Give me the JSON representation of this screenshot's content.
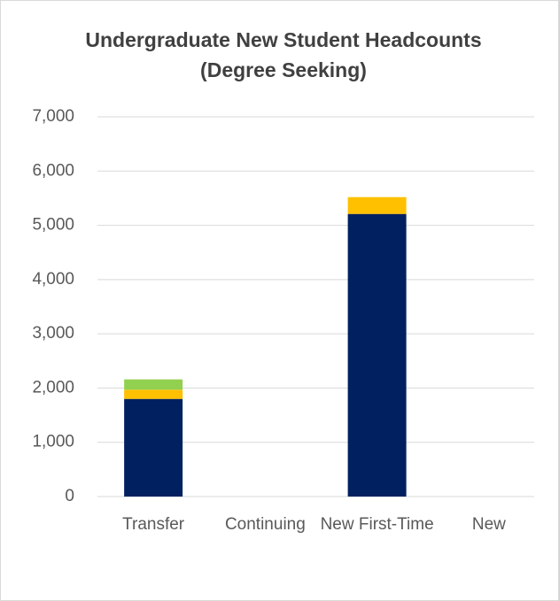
{
  "chart_data": {
    "type": "stacked_bar",
    "title": "Undergraduate New Student Headcounts (Degree Seeking)",
    "categories": [
      "Transfer",
      "Continuing",
      "New First-Time",
      "New"
    ],
    "series": [
      {
        "color": "#002060",
        "values": [
          1800,
          0,
          5210,
          0
        ]
      },
      {
        "color": "#ffc000",
        "values": [
          170,
          0,
          310,
          0
        ]
      },
      {
        "color": "#92d050",
        "values": [
          190,
          0,
          0,
          0
        ]
      }
    ],
    "ylim": [
      0,
      7000
    ],
    "yticks": [
      {
        "value": 0,
        "label": "0"
      },
      {
        "value": 1000,
        "label": "1,000"
      },
      {
        "value": 2000,
        "label": "2,000"
      },
      {
        "value": 3000,
        "label": "3,000"
      },
      {
        "value": 4000,
        "label": "4,000"
      },
      {
        "value": 5000,
        "label": "5,000"
      },
      {
        "value": 6000,
        "label": "6,000"
      },
      {
        "value": 7000,
        "label": "7,000"
      }
    ],
    "grid": true
  }
}
